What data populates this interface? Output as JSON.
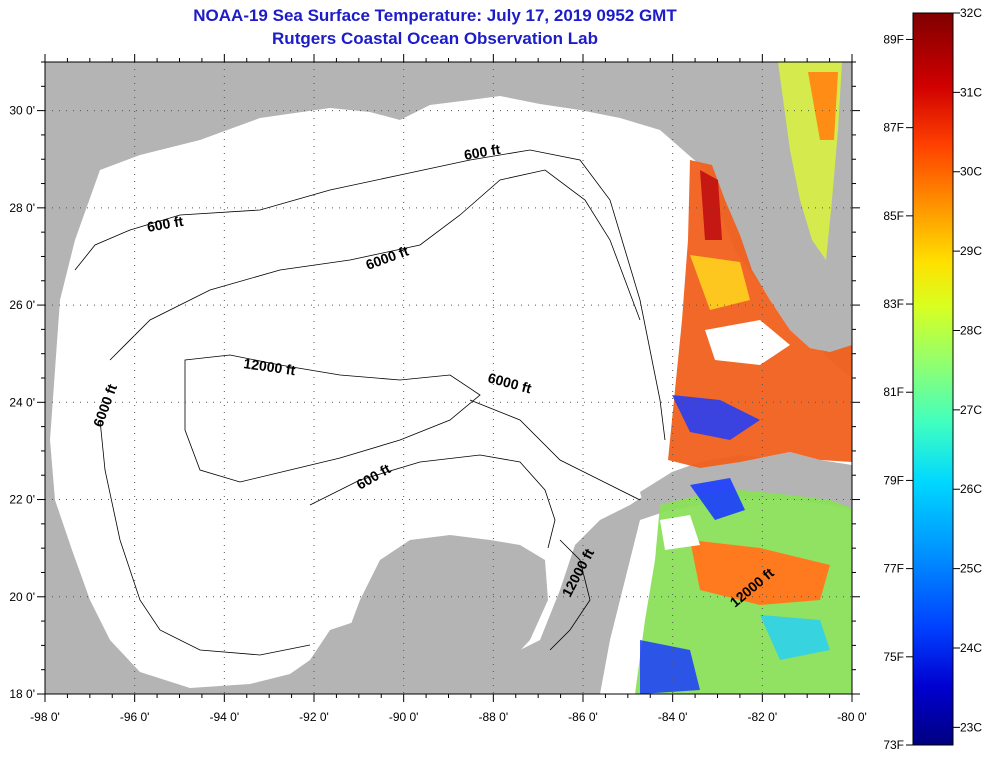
{
  "title": {
    "line1": "NOAA-19 Sea Surface Temperature:  July 17, 2019 0952 GMT",
    "line2": "Rutgers Coastal Ocean Observation Lab"
  },
  "map": {
    "lon_range": [
      -98,
      -80
    ],
    "lat_range": [
      18,
      31
    ],
    "lon_ticks": [
      "-98 0'",
      "-96 0'",
      "-94 0'",
      "-92 0'",
      "-90 0'",
      "-88 0'",
      "-86 0'",
      "-84 0'",
      "-82 0'",
      "-80 0'"
    ],
    "lat_ticks": [
      "18 0'",
      "20 0'",
      "22 0'",
      "24 0'",
      "26 0'",
      "28 0'",
      "30 0'"
    ],
    "contour_labels": [
      "600 ft",
      "600 ft",
      "600 ft",
      "6000 ft",
      "6000 ft",
      "6000 ft",
      "12000 ft",
      "12000 ft",
      "12000 ft"
    ]
  },
  "colorbar": {
    "fahrenheit_labels": [
      "89F",
      "87F",
      "85F",
      "83F",
      "81F",
      "79F",
      "77F",
      "75F",
      "73F"
    ],
    "celsius_labels": [
      "32C",
      "31C",
      "30C",
      "29C",
      "28C",
      "27C",
      "26C",
      "25C",
      "24C",
      "23C"
    ],
    "colors": [
      "#000080",
      "#0000d0",
      "#0040ff",
      "#0090ff",
      "#00d8ff",
      "#40ffc0",
      "#90ff70",
      "#d8ff20",
      "#ffe000",
      "#ff9000",
      "#ff4000",
      "#d00000",
      "#800000"
    ]
  },
  "colors": {
    "land": "#b4b4b4",
    "ocean_nodata": "#ffffff",
    "title": "#1c1cc8"
  }
}
